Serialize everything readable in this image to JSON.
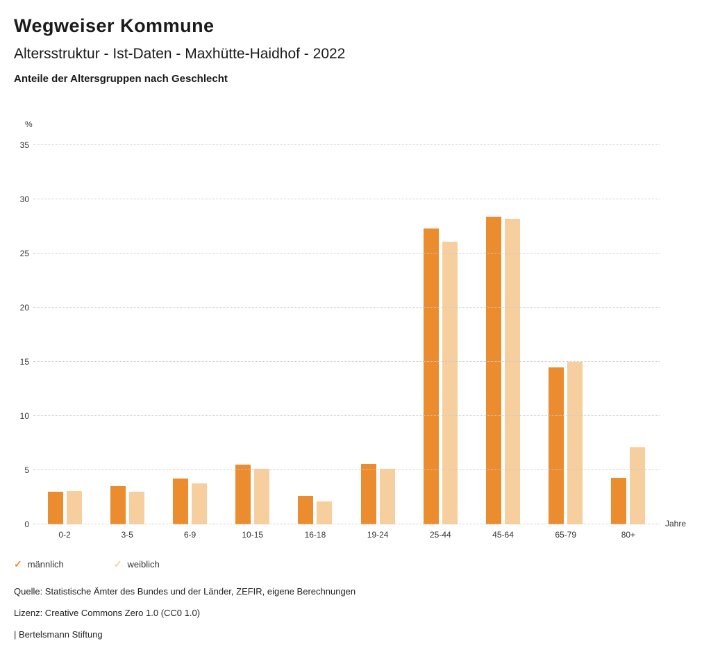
{
  "header": {
    "title": "Wegweiser Kommune",
    "subtitle": "Altersstruktur - Ist-Daten - Maxhütte-Haidhof - 2022",
    "chart_heading": "Anteile der Altersgruppen nach Geschlecht"
  },
  "chart_data": {
    "type": "bar",
    "title": "Anteile der Altersgruppen nach Geschlecht",
    "unit_label": "%",
    "x_axis_label": "Jahre",
    "categories": [
      "0-2",
      "3-5",
      "6-9",
      "10-15",
      "16-18",
      "19-24",
      "25-44",
      "45-64",
      "65-79",
      "80+"
    ],
    "series": [
      {
        "name": "männlich",
        "color": "#EB8C2F",
        "values": [
          3.0,
          3.5,
          4.2,
          5.5,
          2.6,
          5.6,
          27.3,
          28.4,
          14.5,
          4.3
        ]
      },
      {
        "name": "weiblich",
        "color": "#F7CF9F",
        "values": [
          3.1,
          3.0,
          3.8,
          5.1,
          2.1,
          5.1,
          26.1,
          28.2,
          15.0,
          7.1
        ]
      }
    ],
    "ylim": [
      0,
      35
    ],
    "yticks": [
      0,
      5,
      10,
      15,
      20,
      25,
      30,
      35
    ],
    "grid": "dotted horizontal",
    "legend_position": "bottom-left"
  },
  "legend": {
    "items": [
      {
        "label": "männlich",
        "color": "#EB8C2F",
        "check": "✓"
      },
      {
        "label": "weiblich",
        "color": "#F7CF9F",
        "check": "✓"
      }
    ]
  },
  "footer": {
    "source": "Quelle: Statistische Ämter des Bundes und der Länder, ZEFIR, eigene Berechnungen",
    "license": "Lizenz: Creative Commons Zero 1.0 (CC0 1.0)",
    "attribution": "| Bertelsmann Stiftung"
  }
}
